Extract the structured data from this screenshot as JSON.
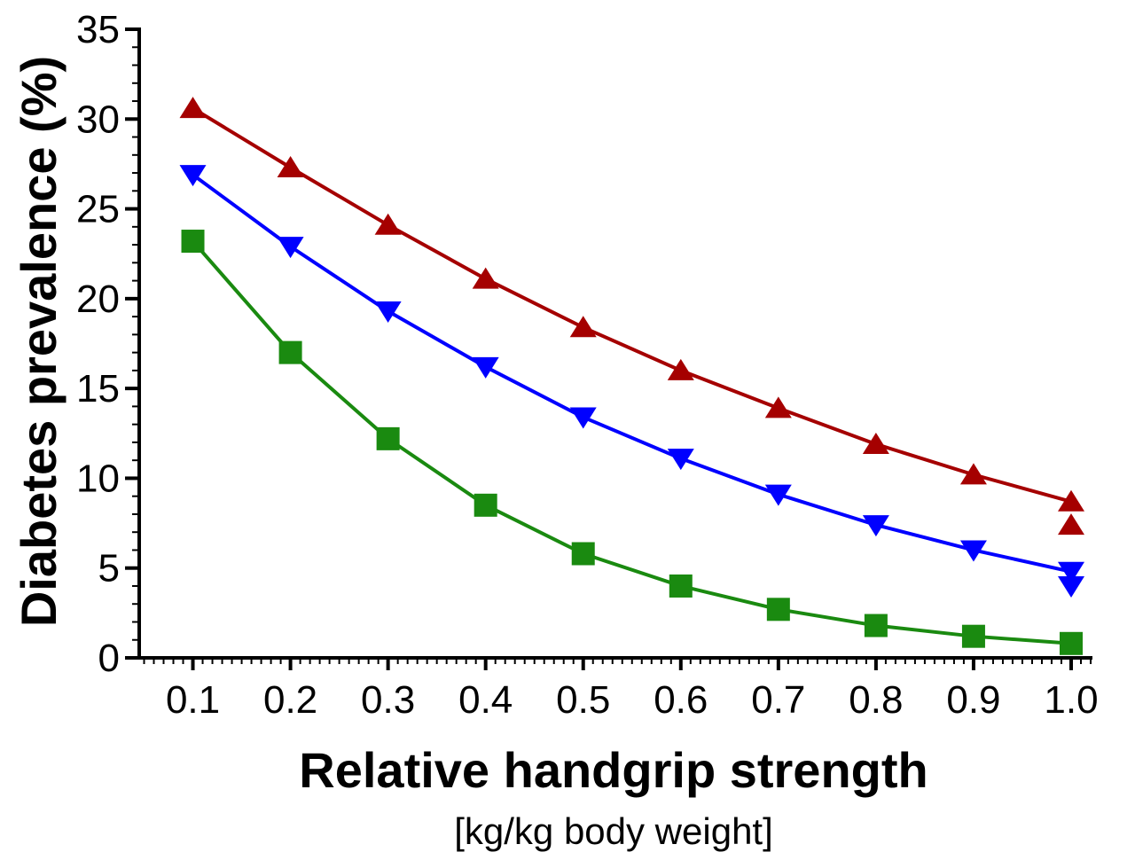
{
  "chart_data": {
    "type": "line",
    "xlabel": "Relative handgrip strength",
    "xlabel_sub": "[kg/kg body weight]",
    "ylabel": "Diabetes prevalence (%)",
    "x": [
      0.1,
      0.2,
      0.3,
      0.4,
      0.5,
      0.6,
      0.7,
      0.8,
      0.9,
      1.0
    ],
    "x_tick_labels": [
      "0.1",
      "0.2",
      "0.3",
      "0.4",
      "0.5",
      "0.6",
      "0.7",
      "0.8",
      "0.9",
      "1.0"
    ],
    "xlim": [
      0.045,
      1.02
    ],
    "ylim": [
      0,
      35
    ],
    "y_ticks": [
      0,
      5,
      10,
      15,
      20,
      25,
      30,
      35
    ],
    "y_tick_labels": [
      "0",
      "5",
      "10",
      "15",
      "20",
      "25",
      "30",
      "35"
    ],
    "grid": false,
    "series": [
      {
        "color": "#a50000",
        "marker": "triangle-up",
        "values": [
          30.6,
          27.3,
          24.1,
          21.1,
          18.4,
          16.0,
          13.9,
          11.9,
          10.2,
          8.7
        ],
        "extra_points": [
          {
            "x": 1.0,
            "y": 7.4
          }
        ]
      },
      {
        "color": "#0000ff",
        "marker": "triangle-down",
        "values": [
          26.9,
          22.9,
          19.3,
          16.2,
          13.4,
          11.1,
          9.1,
          7.4,
          6.0,
          4.8
        ],
        "extra_points": [
          {
            "x": 1.0,
            "y": 4.0
          }
        ]
      },
      {
        "color": "#1a8a10",
        "marker": "square",
        "values": [
          23.2,
          17.0,
          12.2,
          8.5,
          5.8,
          4.0,
          2.7,
          1.8,
          1.2,
          0.8
        ],
        "extra_points": []
      }
    ]
  }
}
